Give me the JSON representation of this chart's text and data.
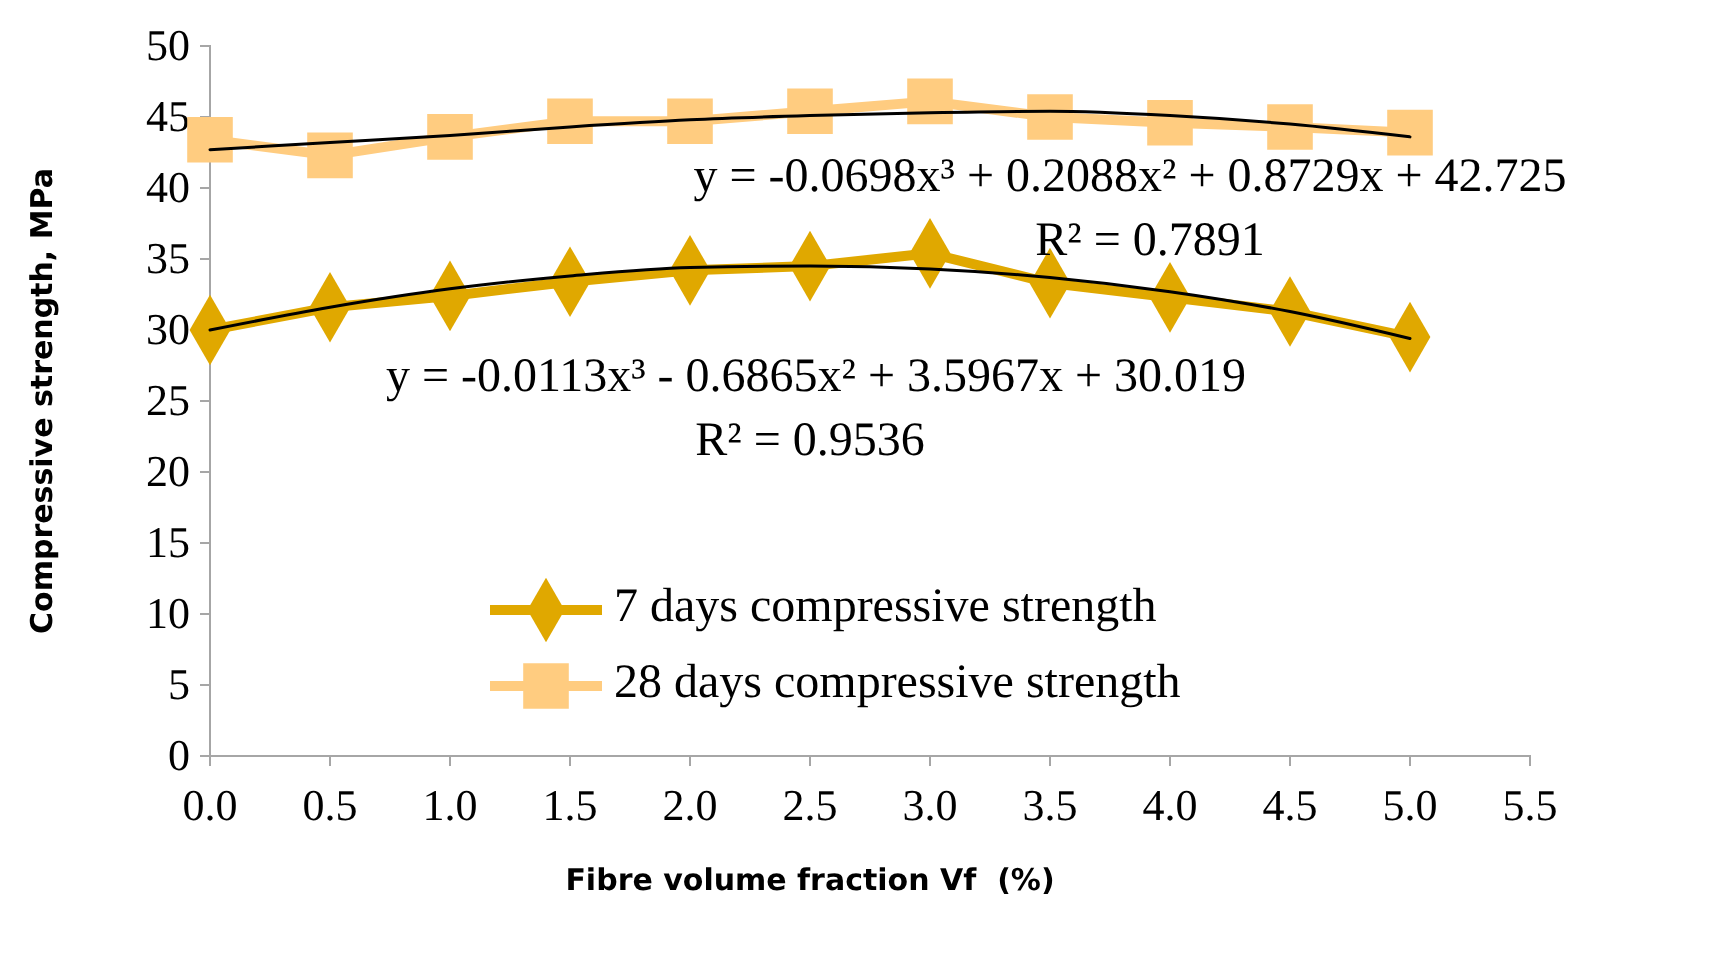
{
  "chart_data": {
    "type": "line",
    "xlabel": "Fibre volume fraction Vf  (%)",
    "ylabel": "Compressive strength, MPa",
    "x": [
      0,
      0.5,
      1,
      1.5,
      2,
      2.5,
      3,
      3.5,
      4,
      4.5,
      5
    ],
    "xlim": [
      0,
      5.5
    ],
    "xticks": [
      {
        "value": 0,
        "label": "0.0"
      },
      {
        "value": 0.5,
        "label": "0.5"
      },
      {
        "value": 1,
        "label": "1.0"
      },
      {
        "value": 1.5,
        "label": "1.5"
      },
      {
        "value": 2,
        "label": "2.0"
      },
      {
        "value": 2.5,
        "label": "2.5"
      },
      {
        "value": 3,
        "label": "3.0"
      },
      {
        "value": 3.5,
        "label": "3.5"
      },
      {
        "value": 4,
        "label": "4.0"
      },
      {
        "value": 4.5,
        "label": "4.5"
      },
      {
        "value": 5,
        "label": "5.0"
      },
      {
        "value": 5.5,
        "label": "5.5"
      }
    ],
    "ylim": [
      0,
      50
    ],
    "yticks": [
      0,
      5,
      10,
      15,
      20,
      25,
      30,
      35,
      40,
      45,
      50
    ],
    "grid": false,
    "legend": "bottom",
    "series": [
      {
        "name": "7 days compressive strength",
        "color": "#e0a800",
        "marker": "diamond",
        "values": [
          30.0,
          31.6,
          32.4,
          33.4,
          34.2,
          34.5,
          35.4,
          33.3,
          32.3,
          31.3,
          29.5
        ]
      },
      {
        "name": "28 days compressive strength",
        "color": "#ffcc80",
        "marker": "square",
        "values": [
          43.4,
          42.3,
          43.6,
          44.7,
          44.7,
          45.4,
          46.1,
          45.0,
          44.6,
          44.3,
          43.9
        ]
      },
      {
        "type": "line",
        "color": "#000000",
        "marker": "none",
        "x": [
          0,
          0.5,
          1,
          1.5,
          2,
          2.5,
          3,
          3.5,
          4,
          4.5,
          5
        ],
        "values": [
          30.0,
          31.6,
          32.9,
          33.8,
          34.4,
          34.5,
          34.3,
          33.7,
          32.7,
          31.3,
          29.4
        ]
      },
      {
        "type": "line",
        "color": "#000000",
        "marker": "none",
        "x": [
          0,
          0.5,
          1,
          1.5,
          2,
          2.5,
          3,
          3.5,
          4,
          4.5,
          5
        ],
        "values": [
          42.7,
          43.2,
          43.7,
          44.3,
          44.8,
          45.1,
          45.3,
          45.4,
          45.1,
          44.5,
          43.6
        ]
      }
    ],
    "annotations": [
      "y = -0.0698x³ + 0.2088x² + 0.8729x + 42.725",
      "R² = 0.7891",
      "y = -0.0113x³ - 0.6865x² + 3.5967x + 30.019",
      "R² = 0.9536"
    ]
  }
}
